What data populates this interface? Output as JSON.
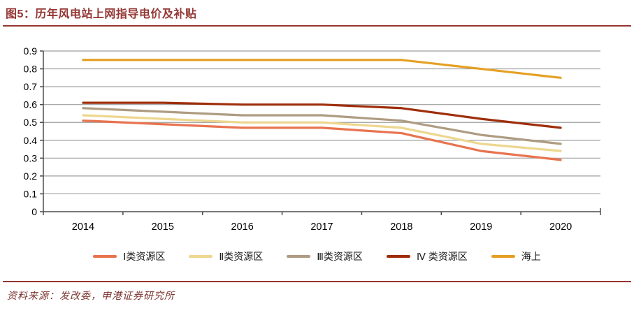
{
  "header": {
    "title": "图5：历年风电站上网指导电价及补贴"
  },
  "footer": {
    "source": "资料来源：发改委，申港证券研究所"
  },
  "colors": {
    "accent_maroon": "#943634",
    "axis": "#4d4d4d",
    "gridline": "#9e9e9e",
    "label_text": "#1a1a1a"
  },
  "chart_data": {
    "type": "line",
    "title": "图5：历年风电站上网指导电价及补贴",
    "categories": [
      "2014",
      "2015",
      "2016",
      "2017",
      "2018",
      "2019",
      "2020"
    ],
    "series": [
      {
        "name": "Ⅰ类资源区",
        "color": "#E8734F",
        "values": [
          0.51,
          0.49,
          0.47,
          0.47,
          0.44,
          0.34,
          0.29
        ]
      },
      {
        "name": "Ⅱ类资源区",
        "color": "#EDD78F",
        "values": [
          0.54,
          0.52,
          0.5,
          0.5,
          0.47,
          0.38,
          0.34
        ]
      },
      {
        "name": "Ⅲ类资源区",
        "color": "#AE9C82",
        "values": [
          0.58,
          0.56,
          0.54,
          0.54,
          0.51,
          0.43,
          0.38
        ]
      },
      {
        "name": "Ⅳ 类资源区",
        "color": "#9E2E0B",
        "values": [
          0.61,
          0.61,
          0.6,
          0.6,
          0.58,
          0.52,
          0.47
        ]
      },
      {
        "name": "海上",
        "color": "#E5A024",
        "values": [
          0.85,
          0.85,
          0.85,
          0.85,
          0.85,
          0.8,
          0.75
        ]
      }
    ],
    "xlabel": "",
    "ylabel": "",
    "ylim": [
      0,
      0.9
    ],
    "ytick_labels": [
      "0",
      "0.1",
      "0.2",
      "0.3",
      "0.4",
      "0.5",
      "0.6",
      "0.7",
      "0.8",
      "0.9"
    ],
    "grid": true,
    "legend_position": "bottom"
  }
}
